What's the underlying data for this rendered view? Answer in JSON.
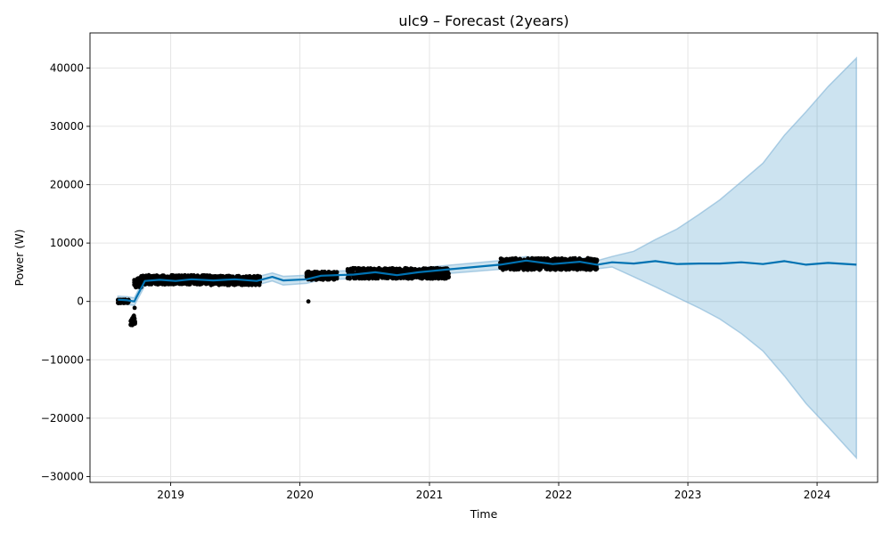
{
  "chart_data": {
    "type": "line",
    "title": "ulc9 – Forecast (2years)",
    "xlabel": "Time",
    "ylabel": "Power (W)",
    "xlim": [
      "2018-05-18",
      "2024-06-20"
    ],
    "ylim": [
      -31000,
      46000
    ],
    "x_ticks": [
      {
        "date": "2019-01-01",
        "label": "2019"
      },
      {
        "date": "2020-01-01",
        "label": "2020"
      },
      {
        "date": "2021-01-01",
        "label": "2021"
      },
      {
        "date": "2022-01-01",
        "label": "2022"
      },
      {
        "date": "2023-01-01",
        "label": "2023"
      },
      {
        "date": "2024-01-01",
        "label": "2024"
      }
    ],
    "y_ticks": [
      {
        "value": -30000,
        "label": "−30000"
      },
      {
        "value": -20000,
        "label": "−20000"
      },
      {
        "value": -10000,
        "label": "−10000"
      },
      {
        "value": 0,
        "label": "0"
      },
      {
        "value": 10000,
        "label": "10000"
      },
      {
        "value": 20000,
        "label": "20000"
      },
      {
        "value": 30000,
        "label": "30000"
      },
      {
        "value": 40000,
        "label": "40000"
      }
    ],
    "grid": true,
    "colors": {
      "forecast_line": "#0072B2",
      "uncertainty_band": "#0072B2",
      "observed_points": "#000000",
      "grid": "#e5e5e5"
    },
    "observed_segments": [
      {
        "start": "2018-08-05",
        "end": "2018-09-05",
        "center": 0,
        "spread": 300
      },
      {
        "start": "2018-09-10",
        "end": "2018-09-22",
        "center": -3300,
        "spread": 900
      },
      {
        "start": "2018-09-20",
        "end": "2018-10-10",
        "center": 3200,
        "spread": 800
      },
      {
        "start": "2018-10-10",
        "end": "2019-04-25",
        "center": 3700,
        "spread": 800
      },
      {
        "start": "2019-04-25",
        "end": "2019-09-10",
        "center": 3600,
        "spread": 800
      },
      {
        "start": "2020-01-20",
        "end": "2020-04-15",
        "center": 4400,
        "spread": 700
      },
      {
        "start": "2020-05-15",
        "end": "2021-02-25",
        "center": 4800,
        "spread": 900
      },
      {
        "start": "2021-07-20",
        "end": "2022-04-20",
        "center": 6400,
        "spread": 1000
      }
    ],
    "observed_outliers": [
      {
        "x": "2018-09-21",
        "y": -1100
      },
      {
        "x": "2020-01-25",
        "y": 0
      }
    ],
    "forecast": [
      {
        "x": "2018-08-05",
        "y": 300,
        "lower": -400,
        "upper": 900
      },
      {
        "x": "2018-09-01",
        "y": 200,
        "lower": -500,
        "upper": 800
      },
      {
        "x": "2018-09-20",
        "y": 0,
        "lower": -700,
        "upper": 600
      },
      {
        "x": "2018-10-20",
        "y": 3500,
        "lower": 2700,
        "upper": 4200
      },
      {
        "x": "2018-12-01",
        "y": 3700,
        "lower": 3000,
        "upper": 4400
      },
      {
        "x": "2019-01-15",
        "y": 3500,
        "lower": 2800,
        "upper": 4200
      },
      {
        "x": "2019-03-01",
        "y": 3800,
        "lower": 3100,
        "upper": 4500
      },
      {
        "x": "2019-05-01",
        "y": 3600,
        "lower": 2900,
        "upper": 4300
      },
      {
        "x": "2019-07-01",
        "y": 3800,
        "lower": 3100,
        "upper": 4500
      },
      {
        "x": "2019-09-01",
        "y": 3500,
        "lower": 2800,
        "upper": 4200
      },
      {
        "x": "2019-10-15",
        "y": 4200,
        "lower": 3500,
        "upper": 4900
      },
      {
        "x": "2019-11-15",
        "y": 3600,
        "lower": 2800,
        "upper": 4300
      },
      {
        "x": "2020-01-20",
        "y": 3800,
        "lower": 3100,
        "upper": 4500
      },
      {
        "x": "2020-03-01",
        "y": 4400,
        "lower": 3700,
        "upper": 5100
      },
      {
        "x": "2020-06-01",
        "y": 4600,
        "lower": 3900,
        "upper": 5300
      },
      {
        "x": "2020-08-01",
        "y": 5000,
        "lower": 4300,
        "upper": 5700
      },
      {
        "x": "2020-10-01",
        "y": 4500,
        "lower": 3800,
        "upper": 5200
      },
      {
        "x": "2020-12-01",
        "y": 5000,
        "lower": 4300,
        "upper": 5700
      },
      {
        "x": "2021-02-25",
        "y": 5500,
        "lower": 4800,
        "upper": 6200
      },
      {
        "x": "2021-07-20",
        "y": 6300,
        "lower": 5500,
        "upper": 7000
      },
      {
        "x": "2021-10-01",
        "y": 7000,
        "lower": 6300,
        "upper": 7700
      },
      {
        "x": "2021-12-15",
        "y": 6400,
        "lower": 5700,
        "upper": 7100
      },
      {
        "x": "2022-03-01",
        "y": 6800,
        "lower": 6100,
        "upper": 7500
      },
      {
        "x": "2022-04-20",
        "y": 6300,
        "lower": 5600,
        "upper": 7000
      },
      {
        "x": "2022-06-01",
        "y": 6700,
        "lower": 5900,
        "upper": 7700
      },
      {
        "x": "2022-08-01",
        "y": 6500,
        "lower": 4200,
        "upper": 8600
      },
      {
        "x": "2022-10-01",
        "y": 6900,
        "lower": 2500,
        "upper": 10600
      },
      {
        "x": "2022-12-01",
        "y": 6400,
        "lower": 700,
        "upper": 12400
      },
      {
        "x": "2023-02-01",
        "y": 6500,
        "lower": -1100,
        "upper": 14900
      },
      {
        "x": "2023-04-01",
        "y": 6500,
        "lower": -3000,
        "upper": 17400
      },
      {
        "x": "2023-06-01",
        "y": 6700,
        "lower": -5500,
        "upper": 20500
      },
      {
        "x": "2023-08-01",
        "y": 6400,
        "lower": -8500,
        "upper": 23700
      },
      {
        "x": "2023-10-01",
        "y": 6900,
        "lower": -12800,
        "upper": 28500
      },
      {
        "x": "2023-12-01",
        "y": 6300,
        "lower": -17500,
        "upper": 32500
      },
      {
        "x": "2024-02-01",
        "y": 6600,
        "lower": -21500,
        "upper": 36800
      },
      {
        "x": "2024-04-21",
        "y": 6300,
        "lower": -26800,
        "upper": 41700
      }
    ]
  }
}
